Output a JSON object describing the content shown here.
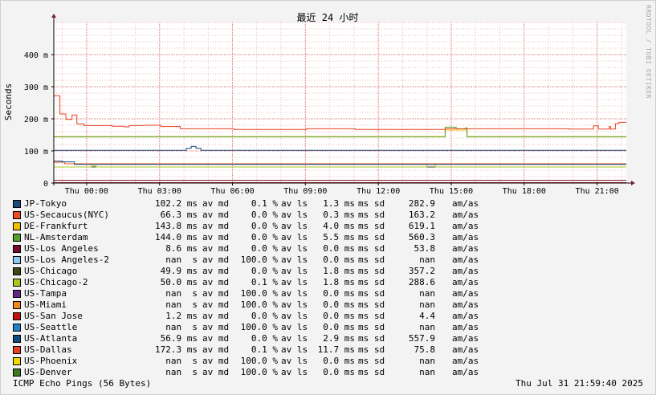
{
  "watermark": "RRDTOOL / TOBI OETIKER",
  "footer": {
    "left": "ICMP Echo Pings (56 Bytes)",
    "right": "Thu Jul 31 21:59:40 2025"
  },
  "chart_data": {
    "type": "line",
    "title": "最近 24 小时",
    "ylabel": "Seconds",
    "ylim": [
      0,
      0.5
    ],
    "yticks": [
      {
        "value": 0,
        "label": "0"
      },
      {
        "value": 0.1,
        "label": "100 m"
      },
      {
        "value": 0.2,
        "label": "200 m"
      },
      {
        "value": 0.3,
        "label": "300 m"
      },
      {
        "value": 0.4,
        "label": "400 m"
      }
    ],
    "xlim": [
      -1.35,
      22.2
    ],
    "xticks": [
      {
        "value": 0,
        "label": "Thu 00:00"
      },
      {
        "value": 3,
        "label": "Thu 03:00"
      },
      {
        "value": 6,
        "label": "Thu 06:00"
      },
      {
        "value": 9,
        "label": "Thu 09:00"
      },
      {
        "value": 12,
        "label": "Thu 12:00"
      },
      {
        "value": 15,
        "label": "Thu 15:00"
      },
      {
        "value": 18,
        "label": "Thu 18:00"
      },
      {
        "value": 21,
        "label": "Thu 21:00"
      }
    ],
    "grid": true,
    "series": [
      {
        "name": "JP-Tokyo",
        "color": "#1a4a7a",
        "current": "102.2 ms",
        "loss": "0.1 %",
        "avg": "1.3 ms",
        "sd": "282.9",
        "points": [
          [
            -1.35,
            0.102
          ],
          [
            4.0,
            0.102
          ],
          [
            4.1,
            0.108
          ],
          [
            4.3,
            0.114
          ],
          [
            4.5,
            0.108
          ],
          [
            4.7,
            0.102
          ],
          [
            22.2,
            0.102
          ]
        ]
      },
      {
        "name": "US-Secaucus(NYC)",
        "color": "#ea4d1f",
        "current": "66.3 ms",
        "loss": "0.0 %",
        "avg": "0.3 ms",
        "sd": "163.2",
        "points": [
          [
            -1.35,
            0.065
          ],
          [
            -1.05,
            0.065
          ],
          [
            -0.9,
            0.06
          ],
          [
            22.2,
            0.06
          ]
        ]
      },
      {
        "name": "DE-Frankfurt",
        "color": "#f0c000",
        "current": "143.8 ms",
        "loss": "0.0 %",
        "avg": "4.0 ms",
        "sd": "619.1",
        "points": [
          [
            -1.35,
            0.145
          ],
          [
            14.7,
            0.145
          ],
          [
            14.75,
            0.165
          ],
          [
            15.6,
            0.165
          ],
          [
            15.65,
            0.145
          ],
          [
            22.2,
            0.145
          ]
        ]
      },
      {
        "name": "NL-Amsterdam",
        "color": "#54a028",
        "current": "144.0 ms",
        "loss": "0.0 %",
        "avg": "5.5 ms",
        "sd": "560.3",
        "points": [
          [
            -1.35,
            0.144
          ],
          [
            14.7,
            0.144
          ],
          [
            14.75,
            0.174
          ],
          [
            15.15,
            0.174
          ],
          [
            15.2,
            0.169
          ],
          [
            15.6,
            0.172
          ],
          [
            15.65,
            0.144
          ],
          [
            22.2,
            0.144
          ]
        ]
      },
      {
        "name": "US-Los Angeles",
        "color": "#7a0a28",
        "current": "8.6 ms",
        "loss": "0.0 %",
        "avg": "0.0 ms",
        "sd": "53.8",
        "points": [
          [
            -1.35,
            0.0086
          ],
          [
            22.2,
            0.0086
          ]
        ]
      },
      {
        "name": "US-Los Angeles-2",
        "color": "#8cc8f0",
        "current": "nan  s",
        "loss": "100.0 %",
        "avg": "0.0 ms",
        "sd": "nan",
        "points": []
      },
      {
        "name": "US-Chicago",
        "color": "#3a4a10",
        "current": "49.9 ms",
        "loss": "0.0 %",
        "avg": "1.8 ms",
        "sd": "357.2",
        "points": [
          [
            -1.35,
            0.05
          ],
          [
            22.2,
            0.05
          ]
        ]
      },
      {
        "name": "US-Chicago-2",
        "color": "#a8c820",
        "current": "50.0 ms",
        "loss": "0.1 %",
        "avg": "1.8 ms",
        "sd": "288.6",
        "points": [
          [
            -1.35,
            0.05
          ],
          [
            0.1,
            0.05
          ],
          [
            0.2,
            0.053
          ],
          [
            0.4,
            0.05
          ],
          [
            13.9,
            0.05
          ],
          [
            14.0,
            0.058
          ],
          [
            14.3,
            0.058
          ],
          [
            14.35,
            0.05
          ],
          [
            22.2,
            0.05
          ]
        ]
      },
      {
        "name": "US-Tampa",
        "color": "#602880",
        "current": "nan  s",
        "loss": "100.0 %",
        "avg": "0.0 ms",
        "sd": "nan",
        "points": []
      },
      {
        "name": "US-Miami",
        "color": "#f08820",
        "current": "nan  s",
        "loss": "100.0 %",
        "avg": "0.0 ms",
        "sd": "nan",
        "points": []
      },
      {
        "name": "US-San Jose",
        "color": "#c01010",
        "current": "1.2 ms",
        "loss": "0.0 %",
        "avg": "0.0 ms",
        "sd": "4.4",
        "points": [
          [
            -1.35,
            0.0012
          ],
          [
            22.2,
            0.0012
          ]
        ]
      },
      {
        "name": "US-Seattle",
        "color": "#2080c8",
        "current": "nan  s",
        "loss": "100.0 %",
        "avg": "0.0 ms",
        "sd": "nan",
        "points": []
      },
      {
        "name": "US-Atlanta",
        "color": "#104a80",
        "current": "56.9 ms",
        "loss": "0.0 %",
        "avg": "2.9 ms",
        "sd": "557.9",
        "points": [
          [
            -1.35,
            0.068
          ],
          [
            -1.1,
            0.068
          ],
          [
            -1.0,
            0.066
          ],
          [
            -0.6,
            0.066
          ],
          [
            -0.5,
            0.058
          ],
          [
            22.2,
            0.058
          ]
        ]
      },
      {
        "name": "US-Dallas",
        "color": "#e84020",
        "current": "172.3 ms",
        "loss": "0.1 %",
        "avg": "11.7 ms",
        "sd": "75.8",
        "points": [
          [
            -1.35,
            0.272
          ],
          [
            -1.15,
            0.272
          ],
          [
            -1.1,
            0.215
          ],
          [
            -0.9,
            0.215
          ],
          [
            -0.85,
            0.198
          ],
          [
            -0.65,
            0.198
          ],
          [
            -0.6,
            0.212
          ],
          [
            -0.45,
            0.212
          ],
          [
            -0.4,
            0.184
          ],
          [
            -0.15,
            0.184
          ],
          [
            -0.1,
            0.179
          ],
          [
            1.0,
            0.179
          ],
          [
            1.05,
            0.177
          ],
          [
            1.5,
            0.177
          ],
          [
            1.55,
            0.175
          ],
          [
            1.7,
            0.175
          ],
          [
            1.75,
            0.179
          ],
          [
            2.3,
            0.179
          ],
          [
            2.35,
            0.18
          ],
          [
            3.0,
            0.18
          ],
          [
            3.05,
            0.176
          ],
          [
            3.8,
            0.176
          ],
          [
            3.85,
            0.169
          ],
          [
            6.0,
            0.169
          ],
          [
            6.05,
            0.167
          ],
          [
            9.0,
            0.167
          ],
          [
            9.05,
            0.169
          ],
          [
            11.0,
            0.169
          ],
          [
            11.05,
            0.167
          ],
          [
            14.7,
            0.167
          ],
          [
            14.75,
            0.169
          ],
          [
            19.8,
            0.169
          ],
          [
            19.85,
            0.168
          ],
          [
            20.8,
            0.168
          ],
          [
            20.85,
            0.178
          ],
          [
            21.0,
            0.178
          ],
          [
            21.05,
            0.168
          ],
          [
            21.4,
            0.168
          ],
          [
            21.5,
            0.176
          ],
          [
            21.55,
            0.168
          ],
          [
            21.7,
            0.168
          ],
          [
            21.75,
            0.185
          ],
          [
            21.9,
            0.189
          ],
          [
            22.2,
            0.189
          ]
        ]
      },
      {
        "name": "US-Phoenix",
        "color": "#f0d800",
        "current": "nan  s",
        "loss": "100.0 %",
        "avg": "0.0 ms",
        "sd": "nan",
        "points": []
      },
      {
        "name": "US-Denver",
        "color": "#407820",
        "current": "nan  s",
        "loss": "100.0 %",
        "avg": "0.0 ms",
        "sd": "nan",
        "points": []
      }
    ]
  },
  "legend_words": {
    "cur": "av md",
    "loss": "av ls",
    "avg": "ms sd",
    "unit": "am/as"
  }
}
